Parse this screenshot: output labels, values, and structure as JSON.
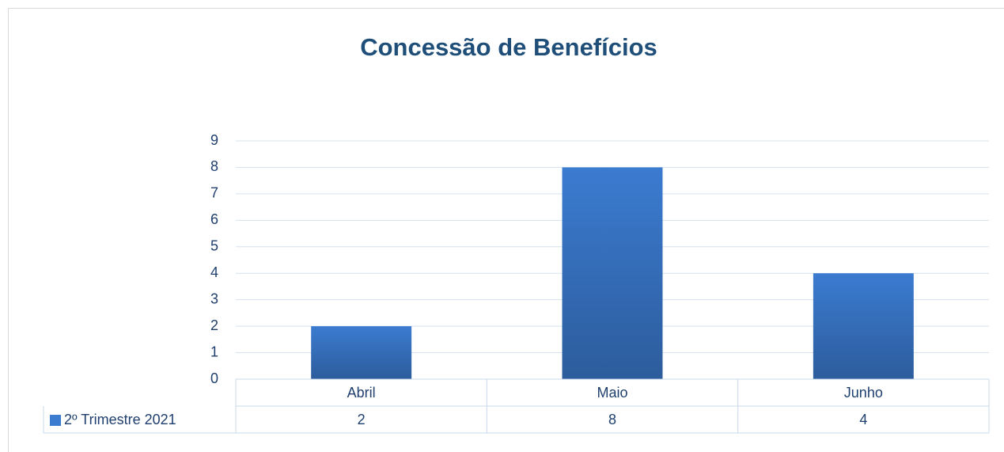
{
  "chart_data": {
    "type": "bar",
    "title": "Concessão de Benefícios",
    "categories": [
      "Abril",
      "Maio",
      "Junho"
    ],
    "series": [
      {
        "name": "2º Trimestre 2021",
        "color": "#3b7bd0",
        "values": [
          2,
          8,
          4
        ]
      }
    ],
    "ylim": [
      0,
      9
    ],
    "yticks": [
      0,
      1,
      2,
      3,
      4,
      5,
      6,
      7,
      8,
      9
    ],
    "grid": true,
    "data_table": true
  }
}
